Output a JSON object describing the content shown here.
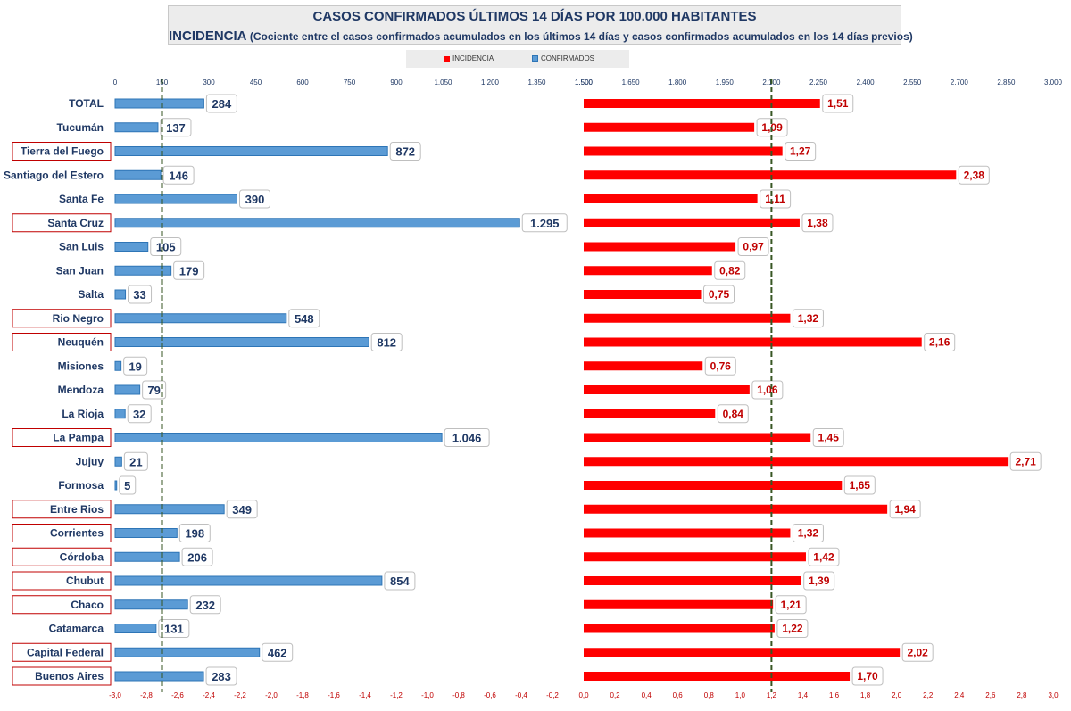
{
  "title": {
    "line1": "CASOS CONFIRMADOS ÚLTIMOS 14 DÍAS POR 100.000 HABITANTES",
    "line2_bold": "INCIDENCIA",
    "line2_rest": " (Cociente entre el casos confirmados acumulados en los últimos 14 días y casos confirmados acumulados en los 14 días previos)"
  },
  "legend": {
    "incidencia_label": "INCIDENCIA",
    "confirmados_label": "CONFIRMADOS"
  },
  "colors": {
    "incidencia": "#ff0000",
    "confirmados": "#5b9bd5",
    "reference_line": "#375623",
    "label_text_confirmados": "#1f3864",
    "label_text_incidencia": "#c00000",
    "highlight_border": "#c00000"
  },
  "chart_data": {
    "type": "bar",
    "orientation": "horizontal",
    "categories": [
      "TOTAL",
      "Tucumán",
      "Tierra del Fuego",
      "Santiago del Estero",
      "Santa Fe",
      "Santa Cruz",
      "San Luis",
      "San Juan",
      "Salta",
      "Rio Negro",
      "Neuquén",
      "Misiones",
      "Mendoza",
      "La Rioja",
      "La Pampa",
      "Jujuy",
      "Formosa",
      "Entre Rios",
      "Corrientes",
      "Córdoba",
      "Chubut",
      "Chaco",
      "Catamarca",
      "Capital Federal",
      "Buenos Aires"
    ],
    "highlighted_categories": [
      "Tierra del Fuego",
      "Santa Cruz",
      "Rio Negro",
      "Neuquén",
      "La Pampa",
      "Entre Rios",
      "Corrientes",
      "Córdoba",
      "Chubut",
      "Chaco",
      "Capital Federal",
      "Buenos Aires"
    ],
    "series": [
      {
        "name": "CONFIRMADOS",
        "values": [
          284,
          137,
          872,
          146,
          390,
          1295,
          105,
          179,
          33,
          548,
          812,
          19,
          79,
          32,
          1046,
          21,
          5,
          349,
          198,
          206,
          854,
          232,
          131,
          462,
          283
        ],
        "labels": [
          "284",
          "137",
          "872",
          "146",
          "390",
          "1.295",
          "105",
          "179",
          "33",
          "548",
          "812",
          "19",
          "79",
          "32",
          "1.046",
          "21",
          "5",
          "349",
          "198",
          "206",
          "854",
          "232",
          "131",
          "462",
          "283"
        ],
        "axis": {
          "min": 0,
          "max": 1500,
          "ticks": [
            0,
            150,
            300,
            450,
            600,
            750,
            900,
            1050,
            1200,
            1350,
            1500
          ],
          "tick_labels": [
            "0",
            "150",
            "300",
            "450",
            "600",
            "750",
            "900",
            "1.050",
            "1.200",
            "1.350",
            "1.500"
          ]
        },
        "reference_line": 150
      },
      {
        "name": "INCIDENCIA",
        "values": [
          1.51,
          1.09,
          1.27,
          2.38,
          1.11,
          1.38,
          0.97,
          0.82,
          0.75,
          1.32,
          2.16,
          0.76,
          1.06,
          0.84,
          1.45,
          2.71,
          1.65,
          1.94,
          1.32,
          1.42,
          1.39,
          1.21,
          1.22,
          2.02,
          1.7
        ],
        "labels": [
          "1,51",
          "1,09",
          "1,27",
          "2,38",
          "1,11",
          "1,38",
          "0,97",
          "0,82",
          "0,75",
          "1,32",
          "2,16",
          "0,76",
          "1,06",
          "0,84",
          "1,45",
          "2,71",
          "1,65",
          "1,94",
          "1,32",
          "1,42",
          "1,39",
          "1,21",
          "1,22",
          "2,02",
          "1,70"
        ],
        "axis": {
          "min": 0,
          "max": 3.0,
          "top_ticks": [
            0,
            0.15,
            0.3,
            0.45,
            0.6,
            0.75,
            0.9,
            1.05,
            1.2,
            1.35,
            1.5
          ],
          "top_tick_labels": [
            "1.500",
            "1.650",
            "1.800",
            "1.950",
            "2.100",
            "2.250",
            "2.400",
            "2.550",
            "2.700",
            "2.850",
            "3.000"
          ],
          "bottom_ticks": [
            0,
            0.2,
            0.4,
            0.6,
            0.8,
            1.0,
            1.2,
            1.4,
            1.6,
            1.8,
            2.0,
            2.2,
            2.4,
            2.6,
            2.8,
            3.0
          ],
          "bottom_tick_labels": [
            "0,0",
            "0,2",
            "0,4",
            "0,6",
            "0,8",
            "1,0",
            "1,2",
            "1,4",
            "1,6",
            "1,8",
            "2,0",
            "2,2",
            "2,4",
            "2,6",
            "2,8",
            "3,0"
          ]
        },
        "reference_line": 1.2
      }
    ],
    "left_bottom_axis": {
      "tick_labels": [
        "-3,0",
        "-2,8",
        "-2,6",
        "-2,4",
        "-2,2",
        "-2,0",
        "-1,8",
        "-1,6",
        "-1,4",
        "-1,2",
        "-1,0",
        "-0,8",
        "-0,6",
        "-0,4",
        "-0,2"
      ]
    },
    "grid": false,
    "legend_position": "top"
  }
}
